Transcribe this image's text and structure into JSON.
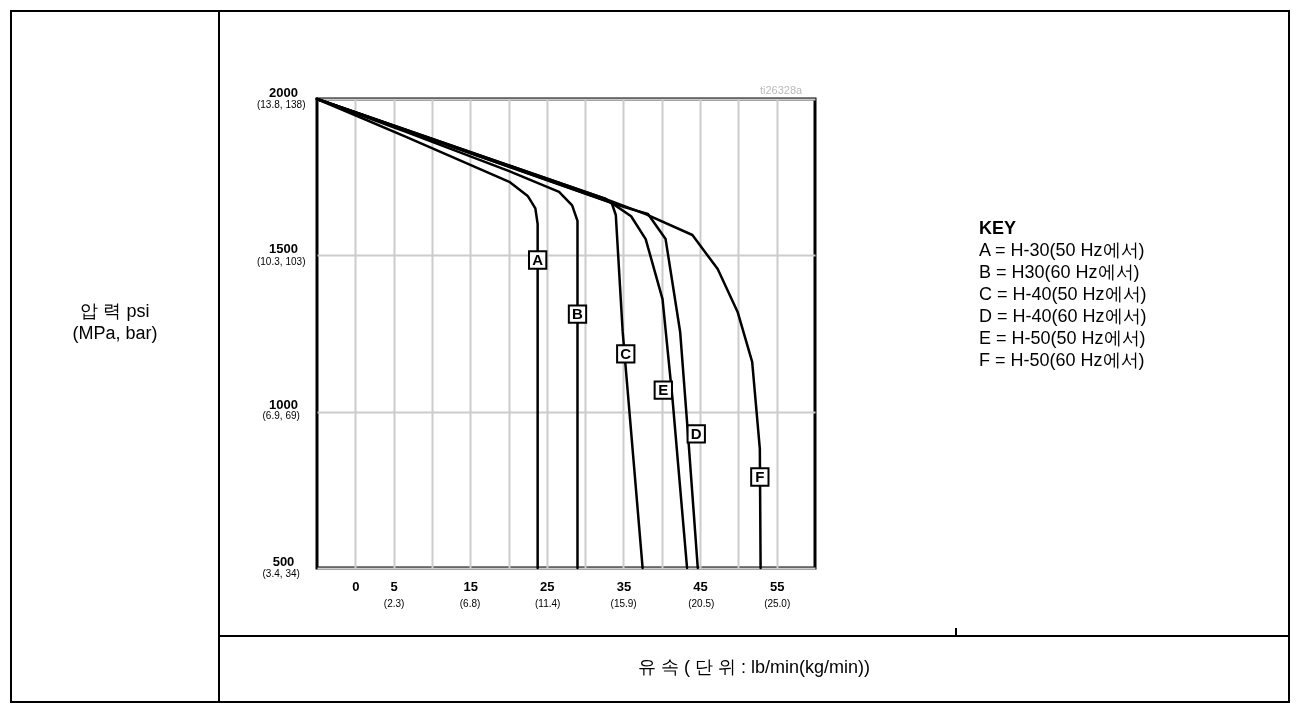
{
  "chart_data": {
    "type": "line",
    "xlabel": "유 속 ( 단 위 :   lb/min(kg/min))",
    "grid": true,
    "xlim": [
      -5,
      60
    ],
    "ylim": [
      500,
      2000
    ],
    "xticks": [
      0,
      5,
      {
        "value": 10,
        "label": null
      },
      15,
      {
        "value": 20,
        "label": null
      },
      25,
      {
        "value": 30,
        "label": null
      },
      35,
      {
        "value": 40,
        "label": null
      },
      45,
      {
        "value": 50,
        "label": null
      },
      55
    ],
    "yticks": [
      500,
      1000,
      1500,
      2000
    ],
    "x2lim": [
      -2.24,
      27.27
    ],
    "x2ticks": [
      {
        "value": 2.3,
        "label": "(2.3)"
      },
      {
        "value": 6.8,
        "label": "(6.8)"
      },
      {
        "value": 11.4,
        "label": "(11.4)"
      },
      {
        "value": 15.9,
        "label": "(15.9)"
      },
      {
        "value": 20.5,
        "label": "(20.5)"
      },
      {
        "value": 25.0,
        "label": "(25.0)"
      }
    ],
    "y2lim": [
      3.4,
      13.8
    ],
    "y2ticks": [
      {
        "value": 3.4,
        "label": "(3.4,"
      },
      {
        "value": 6.9,
        "label": "(6.9,"
      },
      {
        "value": 10.3,
        "label": "(10.3,"
      },
      {
        "value": 13.8,
        "label": "(13.8,"
      }
    ],
    "y3lim": [
      34,
      138
    ],
    "y3ticks": [
      {
        "value": 34,
        "label": "34)"
      },
      {
        "value": 69,
        "label": "69)"
      },
      {
        "value": 103,
        "label": "103)"
      },
      {
        "value": 138,
        "label": "138)"
      }
    ],
    "series": [
      {
        "color": "#000000",
        "x": [
          -5,
          6.7,
          20.1,
          22.5,
          23.5,
          23.8,
          23.8
        ],
        "values": [
          2000,
          1878,
          1735,
          1690,
          1650,
          1600,
          500
        ]
      },
      {
        "color": "#000000",
        "x": [
          -5,
          6.7,
          20,
          26.6,
          28.3,
          29.0,
          29.0
        ],
        "values": [
          2000,
          1894,
          1770,
          1703,
          1660,
          1610,
          500
        ]
      },
      {
        "color": "#000000",
        "x": [
          -5,
          32.7,
          33.5,
          34.0,
          34.9,
          37.5
        ],
        "values": [
          2000,
          1680,
          1665,
          1629,
          1255,
          500
        ]
      },
      {
        "color": "#000000",
        "x": [
          -5,
          35,
          38.2,
          40.5,
          42.4,
          43.4,
          44.7
        ],
        "values": [
          2000,
          1655,
          1632,
          1552,
          1255,
          935,
          500
        ]
      },
      {
        "color": "#000000",
        "x": [
          -5,
          33.5,
          36,
          37.9,
          40.1,
          41.4,
          43.3
        ],
        "values": [
          2000,
          1667,
          1625,
          1552,
          1360,
          1041,
          500
        ]
      },
      {
        "color": "#000000",
        "x": [
          -5,
          32.7,
          37.9,
          44,
          47.3,
          49.9,
          51.8,
          52.8,
          52.9
        ],
        "values": [
          2000,
          1680,
          1632,
          1565,
          1456,
          1319,
          1159,
          881,
          500
        ]
      }
    ],
    "annotations": [
      {
        "text": "A",
        "x": 23.8,
        "y": 1485
      },
      {
        "text": "B",
        "x": 29.0,
        "y": 1312
      },
      {
        "text": "C",
        "x": 35.3,
        "y": 1185
      },
      {
        "text": "D",
        "x": 44.5,
        "y": 929
      },
      {
        "text": "E",
        "x": 40.2,
        "y": 1069
      },
      {
        "text": "F",
        "x": 52.8,
        "y": 791
      },
      "압 력 psi\n(MPa, bar)",
      "ti26328a",
      "KEY",
      "A = H-30(50 Hz에서)",
      "B = H30(60 Hz에서)",
      "C = H-40(50 Hz에서)",
      "D = H-40(60 Hz에서)",
      "E = H-50(50 Hz에서)",
      "F = H-50(60 Hz에서)"
    ]
  }
}
